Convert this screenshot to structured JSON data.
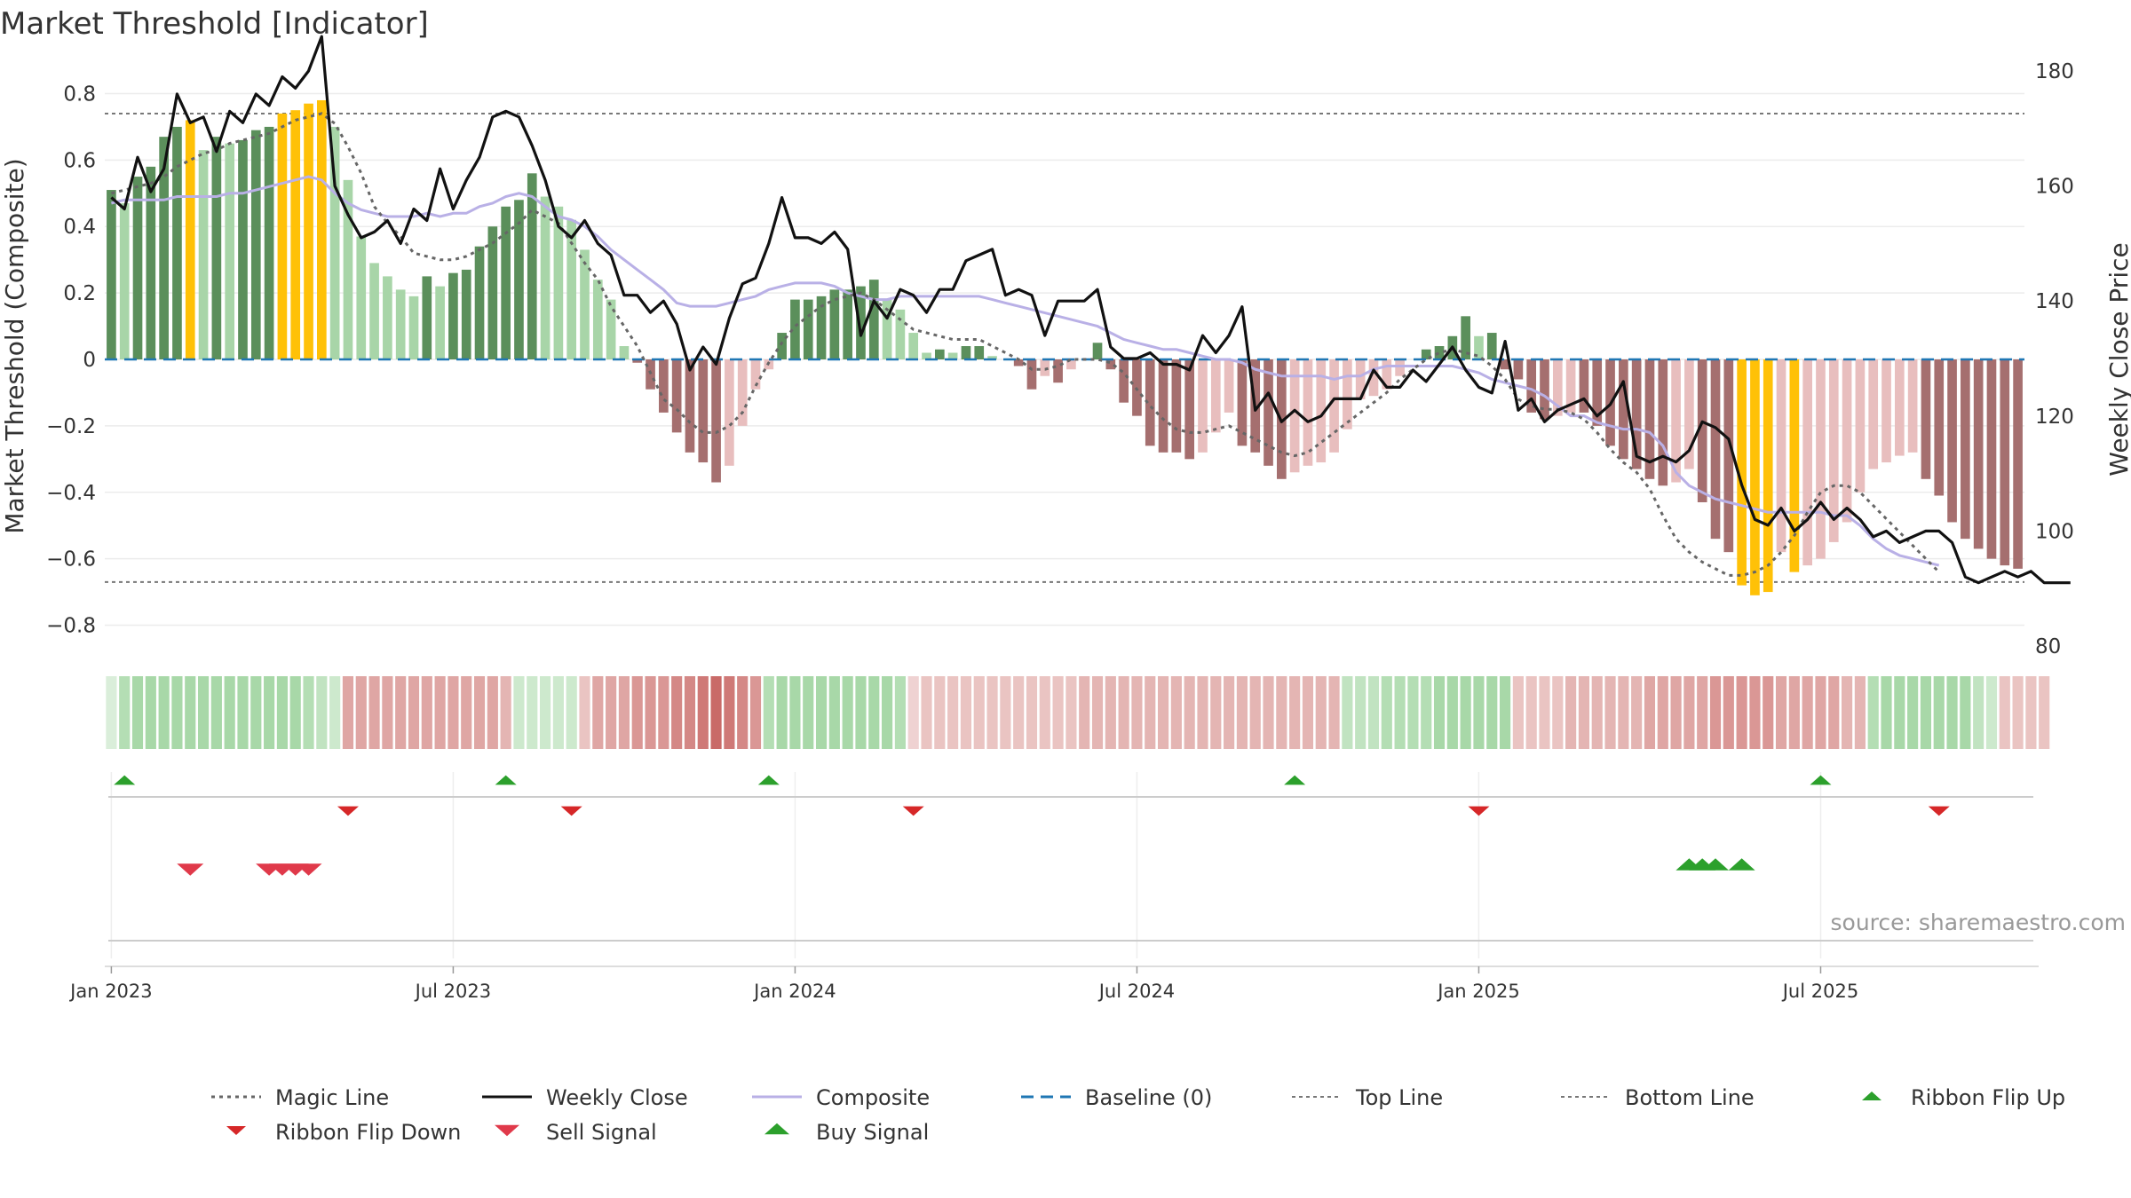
{
  "chart_data": {
    "type": "bar",
    "title": "Market Threshold [Indicator]",
    "ylabel": "Market Threshold (Composite)",
    "y2label": "Weekly Close Price",
    "source": "source: sharemaestro.com",
    "ylim": [
      -0.87,
      0.87
    ],
    "y2lim": [
      80,
      180
    ],
    "yticks": [
      0.8,
      0.6,
      0.4,
      0.2,
      0,
      -0.2,
      -0.4,
      -0.6,
      -0.8
    ],
    "ytick_labels": [
      "0.8",
      "0.6",
      "0.4",
      "0.2",
      "0",
      "−0.2",
      "−0.4",
      "−0.6",
      "−0.8"
    ],
    "y2ticks": [
      180,
      160,
      140,
      120,
      100,
      80
    ],
    "y2tick_labels": [
      "180",
      "160",
      "140",
      "120",
      "100",
      "80"
    ],
    "x_ticks": [
      {
        "week": 0,
        "label": "Jan 2023"
      },
      {
        "week": 26,
        "label": "Jul 2023"
      },
      {
        "week": 52,
        "label": "Jan 2024"
      },
      {
        "week": 78,
        "label": "Jul 2024"
      },
      {
        "week": 104,
        "label": "Jan 2025"
      },
      {
        "week": 130,
        "label": "Jul 2025"
      }
    ],
    "top_line": 0.74,
    "bottom_line": -0.67,
    "composite_bars": [
      0.51,
      0.47,
      0.55,
      0.58,
      0.67,
      0.7,
      0.72,
      0.63,
      0.67,
      0.65,
      0.66,
      0.69,
      0.7,
      0.74,
      0.75,
      0.77,
      0.78,
      0.7,
      0.54,
      0.37,
      0.29,
      0.25,
      0.21,
      0.19,
      0.25,
      0.22,
      0.26,
      0.27,
      0.34,
      0.4,
      0.46,
      0.48,
      0.56,
      0.49,
      0.46,
      0.42,
      0.33,
      0.24,
      0.18,
      0.04,
      -0.01,
      -0.09,
      -0.16,
      -0.22,
      -0.28,
      -0.31,
      -0.37,
      -0.32,
      -0.2,
      -0.09,
      -0.03,
      0.08,
      0.18,
      0.18,
      0.19,
      0.21,
      0.21,
      0.22,
      0.24,
      0.18,
      0.15,
      0.08,
      0.02,
      0.03,
      0.02,
      0.04,
      0.04,
      0.01,
      0,
      -0.02,
      -0.09,
      -0.05,
      -0.07,
      -0.03,
      0,
      0.05,
      -0.03,
      -0.13,
      -0.17,
      -0.26,
      -0.28,
      -0.28,
      -0.3,
      -0.28,
      -0.22,
      -0.16,
      -0.26,
      -0.28,
      -0.32,
      -0.36,
      -0.34,
      -0.32,
      -0.31,
      -0.28,
      -0.21,
      -0.12,
      -0.11,
      -0.09,
      -0.05,
      0,
      0.03,
      0.04,
      0.07,
      0.13,
      0.07,
      0.08,
      -0.03,
      -0.06,
      -0.16,
      -0.18,
      -0.17,
      -0.16,
      -0.16,
      -0.2,
      -0.26,
      -0.3,
      -0.33,
      -0.36,
      -0.38,
      -0.37,
      -0.33,
      -0.43,
      -0.54,
      -0.58,
      -0.68,
      -0.71,
      -0.7,
      -0.58,
      -0.64,
      -0.62,
      -0.6,
      -0.55,
      -0.49,
      -0.4,
      -0.33,
      -0.31,
      -0.29,
      -0.28,
      -0.36,
      -0.41,
      -0.49,
      -0.54,
      -0.57,
      -0.6,
      -0.62,
      -0.63
    ],
    "highlight_weeks": [
      6,
      13,
      14,
      15,
      16,
      124,
      125,
      126,
      128
    ],
    "weekly_close": [
      158,
      156,
      165,
      159,
      163,
      176,
      171,
      172,
      166,
      173,
      171,
      176,
      174,
      179,
      177,
      180,
      186,
      160,
      155,
      151,
      152,
      154,
      150,
      156,
      154,
      163,
      156,
      161,
      165,
      172,
      173,
      172,
      167,
      161,
      153,
      151,
      154,
      150,
      148,
      141,
      141,
      138,
      140,
      136,
      128,
      132,
      129,
      137,
      143,
      144,
      150,
      158,
      151,
      151,
      150,
      152,
      149,
      134,
      140,
      137,
      142,
      141,
      138,
      142,
      142,
      147,
      148,
      149,
      141,
      142,
      141,
      134,
      140,
      140,
      140,
      142,
      132,
      130,
      130,
      131,
      129,
      129,
      128,
      134,
      131,
      134,
      139,
      121,
      124,
      119,
      121,
      119,
      120,
      123,
      123,
      123,
      128,
      125,
      125,
      128,
      126,
      129,
      132,
      128,
      125,
      124,
      133,
      121,
      123,
      119,
      121,
      122,
      123,
      120,
      122,
      126,
      113,
      112,
      113,
      112,
      114,
      119,
      118,
      116,
      108,
      102,
      101,
      104,
      100,
      102,
      105,
      102,
      104,
      102,
      99,
      100,
      98,
      99,
      100,
      100,
      98,
      92,
      91,
      92,
      93,
      92,
      93,
      91,
      91,
      91
    ],
    "composite_line": [
      0.47,
      0.48,
      0.48,
      0.48,
      0.48,
      0.49,
      0.49,
      0.49,
      0.49,
      0.5,
      0.5,
      0.51,
      0.52,
      0.53,
      0.54,
      0.55,
      0.54,
      0.5,
      0.47,
      0.45,
      0.44,
      0.43,
      0.43,
      0.43,
      0.44,
      0.43,
      0.44,
      0.44,
      0.46,
      0.47,
      0.49,
      0.5,
      0.49,
      0.46,
      0.43,
      0.42,
      0.4,
      0.37,
      0.33,
      0.3,
      0.27,
      0.24,
      0.21,
      0.17,
      0.16,
      0.16,
      0.16,
      0.17,
      0.18,
      0.19,
      0.21,
      0.22,
      0.23,
      0.23,
      0.23,
      0.22,
      0.2,
      0.19,
      0.18,
      0.18,
      0.19,
      0.19,
      0.19,
      0.19,
      0.19,
      0.19,
      0.19,
      0.18,
      0.17,
      0.16,
      0.15,
      0.14,
      0.13,
      0.12,
      0.11,
      0.1,
      0.08,
      0.06,
      0.05,
      0.04,
      0.03,
      0.03,
      0.02,
      0.01,
      0,
      0,
      -0.01,
      -0.03,
      -0.04,
      -0.05,
      -0.05,
      -0.05,
      -0.05,
      -0.06,
      -0.05,
      -0.05,
      -0.03,
      -0.02,
      -0.02,
      -0.02,
      -0.02,
      -0.02,
      -0.02,
      -0.03,
      -0.04,
      -0.06,
      -0.07,
      -0.08,
      -0.09,
      -0.11,
      -0.14,
      -0.17,
      -0.17,
      -0.19,
      -0.2,
      -0.21,
      -0.21,
      -0.22,
      -0.26,
      -0.34,
      -0.38,
      -0.4,
      -0.42,
      -0.43,
      -0.44,
      -0.45,
      -0.46,
      -0.46,
      -0.46,
      -0.46,
      -0.46,
      -0.47,
      -0.47,
      -0.5,
      -0.54,
      -0.57,
      -0.59,
      -0.6,
      -0.61,
      -0.62
    ],
    "magic_line": [
      0.5,
      0.51,
      0.52,
      0.53,
      0.55,
      0.58,
      0.6,
      0.62,
      0.63,
      0.65,
      0.66,
      0.67,
      0.68,
      0.7,
      0.72,
      0.73,
      0.74,
      0.71,
      0.64,
      0.56,
      0.46,
      0.41,
      0.37,
      0.32,
      0.31,
      0.3,
      0.3,
      0.31,
      0.33,
      0.35,
      0.38,
      0.41,
      0.45,
      0.43,
      0.41,
      0.35,
      0.29,
      0.24,
      0.16,
      0.1,
      0.04,
      -0.04,
      -0.12,
      -0.15,
      -0.19,
      -0.22,
      -0.22,
      -0.2,
      -0.16,
      -0.08,
      -0.01,
      0.05,
      0.1,
      0.13,
      0.16,
      0.18,
      0.19,
      0.2,
      0.18,
      0.15,
      0.12,
      0.09,
      0.08,
      0.07,
      0.06,
      0.06,
      0.06,
      0.04,
      0.02,
      0,
      -0.03,
      -0.03,
      -0.02,
      0,
      0,
      0,
      -0.01,
      -0.04,
      -0.09,
      -0.14,
      -0.18,
      -0.21,
      -0.22,
      -0.22,
      -0.21,
      -0.2,
      -0.22,
      -0.24,
      -0.26,
      -0.28,
      -0.29,
      -0.28,
      -0.25,
      -0.22,
      -0.19,
      -0.16,
      -0.13,
      -0.1,
      -0.06,
      -0.03,
      0,
      0.02,
      0.03,
      0.02,
      0.01,
      -0.02,
      -0.06,
      -0.12,
      -0.14,
      -0.15,
      -0.15,
      -0.16,
      -0.18,
      -0.22,
      -0.27,
      -0.31,
      -0.34,
      -0.39,
      -0.47,
      -0.54,
      -0.58,
      -0.61,
      -0.63,
      -0.65,
      -0.65,
      -0.64,
      -0.62,
      -0.58,
      -0.53,
      -0.46,
      -0.4,
      -0.38,
      -0.38,
      -0.4,
      -0.44,
      -0.48,
      -0.52,
      -0.56,
      -0.6,
      -0.64
    ],
    "ribbon": [
      0.3,
      0.6,
      0.7,
      0.7,
      0.7,
      0.7,
      0.7,
      0.7,
      0.7,
      0.7,
      0.7,
      0.7,
      0.7,
      0.7,
      0.7,
      0.6,
      0.5,
      0.4,
      -0.6,
      -0.6,
      -0.6,
      -0.6,
      -0.6,
      -0.6,
      -0.6,
      -0.6,
      -0.6,
      -0.6,
      -0.6,
      -0.6,
      -0.5,
      0.4,
      0.4,
      0.4,
      0.4,
      0.4,
      -0.4,
      -0.6,
      -0.6,
      -0.6,
      -0.7,
      -0.7,
      -0.7,
      -0.8,
      -0.8,
      -0.9,
      -1.0,
      -0.9,
      -0.8,
      -0.7,
      0.6,
      0.7,
      0.7,
      0.7,
      0.7,
      0.7,
      0.7,
      0.7,
      0.7,
      0.7,
      0.6,
      -0.3,
      -0.4,
      -0.4,
      -0.4,
      -0.4,
      -0.4,
      -0.4,
      -0.4,
      -0.4,
      -0.4,
      -0.4,
      -0.4,
      -0.4,
      -0.5,
      -0.5,
      -0.5,
      -0.5,
      -0.5,
      -0.5,
      -0.5,
      -0.5,
      -0.5,
      -0.5,
      -0.5,
      -0.5,
      -0.5,
      -0.5,
      -0.5,
      -0.5,
      -0.5,
      -0.5,
      -0.5,
      -0.5,
      0.5,
      0.5,
      0.5,
      0.6,
      0.6,
      0.6,
      0.6,
      0.7,
      0.7,
      0.7,
      0.7,
      0.7,
      0.7,
      -0.4,
      -0.4,
      -0.4,
      -0.4,
      -0.5,
      -0.5,
      -0.5,
      -0.5,
      -0.5,
      -0.5,
      -0.6,
      -0.6,
      -0.6,
      -0.6,
      -0.6,
      -0.7,
      -0.7,
      -0.7,
      -0.7,
      -0.7,
      -0.6,
      -0.6,
      -0.6,
      -0.6,
      -0.6,
      -0.5,
      -0.5,
      0.6,
      0.7,
      0.7,
      0.7,
      0.7,
      0.7,
      0.7,
      0.7,
      0.5,
      0.4,
      -0.4,
      -0.4,
      -0.4,
      -0.4
    ],
    "ribbon_flip_up": [
      1,
      30,
      50,
      90,
      130
    ],
    "ribbon_flip_down": [
      18,
      35,
      61,
      104,
      139
    ],
    "sell_signals": [
      6,
      12,
      13,
      14,
      15
    ],
    "buy_signals": [
      120,
      121,
      122,
      124
    ],
    "legend": [
      {
        "key": "magic",
        "label": "Magic Line"
      },
      {
        "key": "close",
        "label": "Weekly Close"
      },
      {
        "key": "composite",
        "label": "Composite"
      },
      {
        "key": "baseline",
        "label": "Baseline (0)"
      },
      {
        "key": "top",
        "label": "Top Line"
      },
      {
        "key": "bottom",
        "label": "Bottom Line"
      },
      {
        "key": "flipup",
        "label": "Ribbon Flip Up"
      },
      {
        "key": "flipdown",
        "label": "Ribbon Flip Down"
      },
      {
        "key": "sell",
        "label": "Sell Signal"
      },
      {
        "key": "buy",
        "label": "Buy Signal"
      }
    ],
    "colors": {
      "pos_strong": "#5b8f5b",
      "pos_light": "#a8d5a8",
      "neg_strong": "#a56f6f",
      "neg_light": "#e8bebe",
      "highlight": "#ffc107",
      "close": "#111111",
      "composite": "#b9b0e6",
      "magic": "#666666",
      "baseline": "#1f77b4",
      "threshold": "#777777",
      "buy": "#2ca02c",
      "sell": "#d62728",
      "sell_signal": "#e0394a",
      "ribbon_pos": "#5fb85f",
      "ribbon_neg": "#c0504d"
    }
  }
}
